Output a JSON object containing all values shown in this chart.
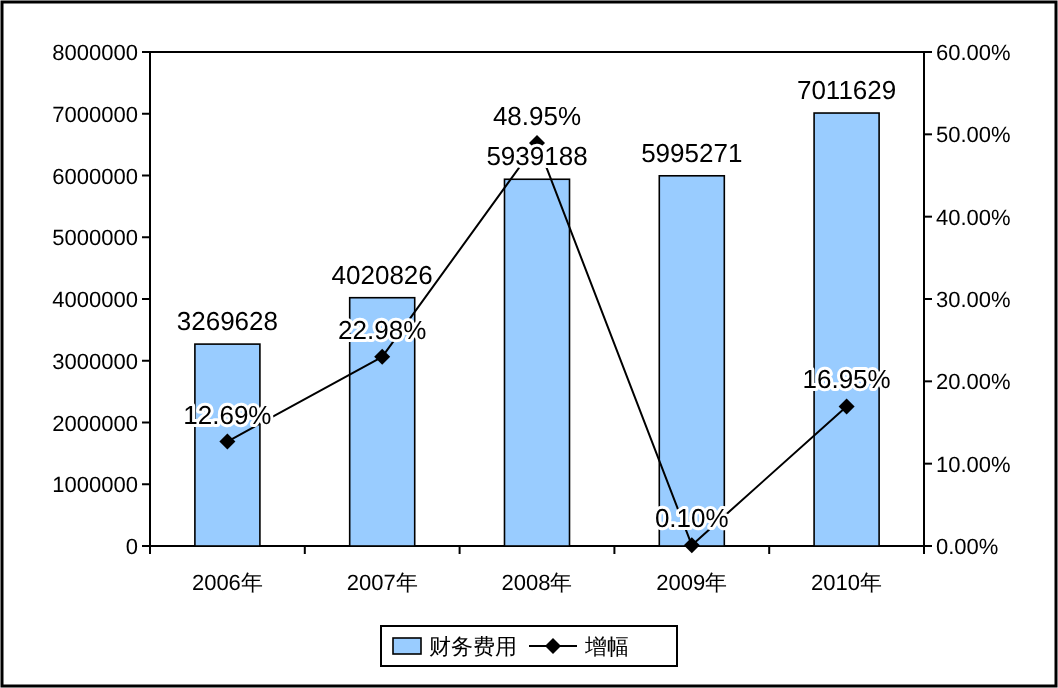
{
  "chart_data": {
    "type": "bar",
    "categories": [
      "2006年",
      "2007年",
      "2008年",
      "2009年",
      "2010年"
    ],
    "series": [
      {
        "name": "财务费用",
        "color": "#99ccff",
        "values": [
          3269628,
          4020826,
          5939188,
          5995271,
          7011629
        ]
      },
      {
        "name": "增幅",
        "type": "line",
        "axis": "y2",
        "color": "#000000",
        "marker": "diamond",
        "values": [
          12.69,
          22.98,
          48.95,
          0.1,
          16.95
        ],
        "value_labels": [
          "12.69%",
          "22.98%",
          "48.95%",
          "0.10%",
          "16.95%"
        ]
      }
    ],
    "ylim": [
      0,
      8000000
    ],
    "yticks": [
      0,
      1000000,
      2000000,
      3000000,
      4000000,
      5000000,
      6000000,
      7000000,
      8000000
    ],
    "y2lim": [
      0,
      60
    ],
    "y2ticks": [
      {
        "value": 0,
        "label": "0.00%"
      },
      {
        "value": 10,
        "label": "10.00%"
      },
      {
        "value": 20,
        "label": "20.00%"
      },
      {
        "value": 30,
        "label": "30.00%"
      },
      {
        "value": 40,
        "label": "40.00%"
      },
      {
        "value": 50,
        "label": "50.00%"
      },
      {
        "value": 60,
        "label": "60.00%"
      }
    ],
    "data_labels": true,
    "legend": "bottom",
    "grid": false
  }
}
